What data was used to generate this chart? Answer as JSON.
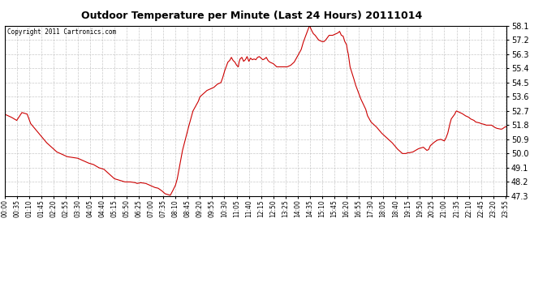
{
  "title": "Outdoor Temperature per Minute (Last 24 Hours) 20111014",
  "copyright_text": "Copyright 2011 Cartronics.com",
  "line_color": "#cc0000",
  "background_color": "#ffffff",
  "grid_color": "#bbbbbb",
  "ylim": [
    47.3,
    58.1
  ],
  "yticks": [
    47.3,
    48.2,
    49.1,
    50.0,
    50.9,
    51.8,
    52.7,
    53.6,
    54.5,
    55.4,
    56.3,
    57.2,
    58.1
  ],
  "xtick_labels": [
    "00:00",
    "00:35",
    "01:10",
    "01:45",
    "02:20",
    "02:55",
    "03:30",
    "04:05",
    "04:40",
    "05:15",
    "05:50",
    "06:25",
    "07:00",
    "07:35",
    "08:10",
    "08:45",
    "09:20",
    "09:55",
    "10:30",
    "11:05",
    "11:40",
    "12:15",
    "12:50",
    "13:25",
    "14:00",
    "14:35",
    "15:10",
    "15:45",
    "16:20",
    "16:55",
    "17:30",
    "18:05",
    "18:40",
    "19:15",
    "19:50",
    "20:25",
    "21:00",
    "21:35",
    "22:10",
    "22:45",
    "23:20",
    "23:55"
  ],
  "keypoints": {
    "0:00": 52.5,
    "0:20": 52.3,
    "0:35": 52.1,
    "0:50": 52.6,
    "1:05": 52.5,
    "1:15": 51.9,
    "1:30": 51.5,
    "1:45": 51.1,
    "2:00": 50.7,
    "2:30": 50.1,
    "3:00": 49.8,
    "3:30": 49.7,
    "4:00": 49.4,
    "4:15": 49.3,
    "4:30": 49.1,
    "4:45": 49.0,
    "5:00": 48.7,
    "5:15": 48.4,
    "5:30": 48.3,
    "5:45": 48.2,
    "6:00": 48.2,
    "6:15": 48.15,
    "6:20": 48.1,
    "6:30": 48.15,
    "6:45": 48.1,
    "7:00": 47.95,
    "7:10": 47.85,
    "7:20": 47.8,
    "7:30": 47.65,
    "7:40": 47.45,
    "7:50": 47.38,
    "7:55": 47.35,
    "8:00": 47.55,
    "8:10": 48.0,
    "8:15": 48.4,
    "8:20": 49.0,
    "8:30": 50.2,
    "8:45": 51.5,
    "9:00": 52.7,
    "9:15": 53.3,
    "9:20": 53.6,
    "9:30": 53.8,
    "9:40": 54.0,
    "9:50": 54.1,
    "10:00": 54.2,
    "10:10": 54.4,
    "10:20": 54.5,
    "10:25": 54.8,
    "10:30": 55.2,
    "10:35": 55.5,
    "10:40": 55.8,
    "10:45": 55.9,
    "10:50": 56.1,
    "10:55": 55.9,
    "11:00": 55.8,
    "11:05": 55.6,
    "11:10": 55.5,
    "11:12": 55.8,
    "11:15": 56.0,
    "11:20": 56.1,
    "11:25": 55.85,
    "11:30": 55.95,
    "11:35": 56.15,
    "11:40": 55.85,
    "11:45": 56.05,
    "11:50": 55.95,
    "11:55": 56.0,
    "12:00": 55.95,
    "12:05": 56.1,
    "12:10": 56.15,
    "12:15": 56.05,
    "12:20": 55.95,
    "12:25": 56.0,
    "12:30": 56.1,
    "12:35": 55.9,
    "12:40": 55.8,
    "12:50": 55.7,
    "13:00": 55.5,
    "13:15": 55.5,
    "13:30": 55.5,
    "13:40": 55.6,
    "13:50": 55.8,
    "14:00": 56.2,
    "14:05": 56.4,
    "14:10": 56.6,
    "14:15": 57.0,
    "14:20": 57.3,
    "14:25": 57.6,
    "14:30": 57.9,
    "14:33": 58.05,
    "14:35": 58.1,
    "14:37": 57.95,
    "14:40": 57.8,
    "14:45": 57.6,
    "14:50": 57.5,
    "15:00": 57.2,
    "15:10": 57.1,
    "15:15": 57.1,
    "15:20": 57.2,
    "15:30": 57.5,
    "15:40": 57.5,
    "15:45": 57.55,
    "15:50": 57.6,
    "15:55": 57.65,
    "16:00": 57.75,
    "16:03": 57.6,
    "16:05": 57.5,
    "16:10": 57.45,
    "16:15": 57.1,
    "16:20": 56.9,
    "16:22": 56.6,
    "16:25": 56.3,
    "16:30": 55.5,
    "16:40": 54.8,
    "16:45": 54.4,
    "17:00": 53.5,
    "17:15": 52.8,
    "17:20": 52.4,
    "17:30": 52.0,
    "17:45": 51.7,
    "18:00": 51.3,
    "18:15": 51.0,
    "18:30": 50.7,
    "18:45": 50.3,
    "19:00": 50.0,
    "19:10": 50.0,
    "19:15": 50.05,
    "19:20": 50.05,
    "19:30": 50.1,
    "19:45": 50.3,
    "20:00": 50.4,
    "20:05": 50.3,
    "20:10": 50.2,
    "20:15": 50.25,
    "20:20": 50.5,
    "20:30": 50.7,
    "20:40": 50.85,
    "20:50": 50.9,
    "20:55": 50.85,
    "21:00": 50.8,
    "21:05": 51.0,
    "21:10": 51.3,
    "21:15": 51.8,
    "21:20": 52.2,
    "21:30": 52.5,
    "21:33": 52.65,
    "21:35": 52.7,
    "21:40": 52.65,
    "21:45": 52.6,
    "21:50": 52.55,
    "22:00": 52.4,
    "22:10": 52.3,
    "22:15": 52.2,
    "22:25": 52.1,
    "22:30": 52.0,
    "22:40": 51.95,
    "22:45": 51.9,
    "22:55": 51.85,
    "23:00": 51.8,
    "23:10": 51.8,
    "23:15": 51.8,
    "23:25": 51.65,
    "23:30": 51.6,
    "23:40": 51.55,
    "23:45": 51.55,
    "23:55": 51.7
  }
}
